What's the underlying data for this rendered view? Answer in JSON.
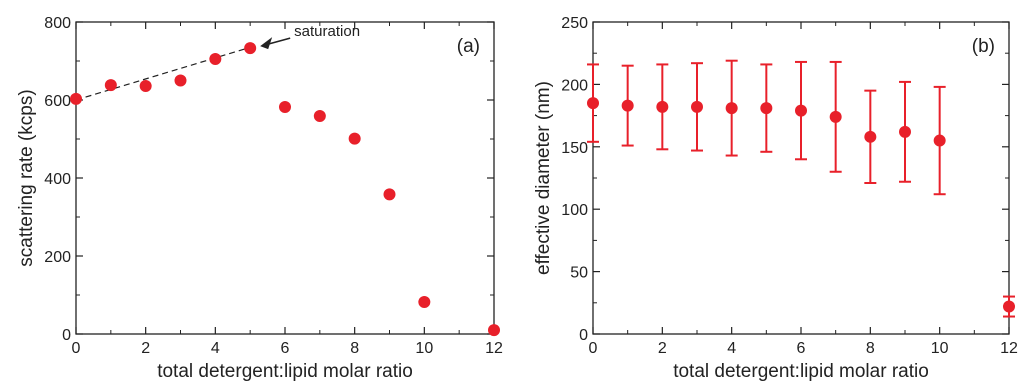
{
  "chart_data": [
    {
      "type": "scatter",
      "panel_label": "(a)",
      "xlabel": "total detergent:lipid molar ratio",
      "ylabel": "scattering rate (kcps)",
      "xlim": [
        0,
        12
      ],
      "ylim": [
        0,
        800
      ],
      "xticks": [
        0,
        2,
        4,
        6,
        8,
        10,
        12
      ],
      "yticks": [
        0,
        200,
        400,
        600,
        800
      ],
      "color": "#e8202a",
      "series": [
        {
          "x": [
            0,
            1,
            2,
            3,
            4,
            5,
            6,
            7,
            8,
            9,
            10,
            12
          ],
          "y": [
            603,
            638,
            636,
            650,
            705,
            733,
            582,
            559,
            501,
            358,
            82,
            10
          ]
        }
      ],
      "fit_line": {
        "x": [
          0,
          5
        ],
        "y": [
          600,
          735
        ],
        "style": "dashed"
      },
      "annotation": {
        "text": "saturation",
        "x": 5,
        "y": 733
      }
    },
    {
      "type": "scatter",
      "panel_label": "(b)",
      "xlabel": "total detergent:lipid molar ratio",
      "ylabel": "effective diameter (nm)",
      "xlim": [
        0,
        12
      ],
      "ylim": [
        0,
        250
      ],
      "xticks": [
        0,
        2,
        4,
        6,
        8,
        10,
        12
      ],
      "yticks": [
        0,
        50,
        100,
        150,
        200,
        250
      ],
      "color": "#e8202a",
      "series": [
        {
          "x": [
            0,
            1,
            2,
            3,
            4,
            5,
            6,
            7,
            8,
            9,
            10,
            12
          ],
          "y": [
            185,
            183,
            182,
            182,
            181,
            181,
            179,
            174,
            158,
            162,
            155,
            22
          ],
          "err": [
            31,
            32,
            34,
            35,
            38,
            35,
            39,
            44,
            37,
            40,
            43,
            8
          ]
        }
      ]
    }
  ]
}
